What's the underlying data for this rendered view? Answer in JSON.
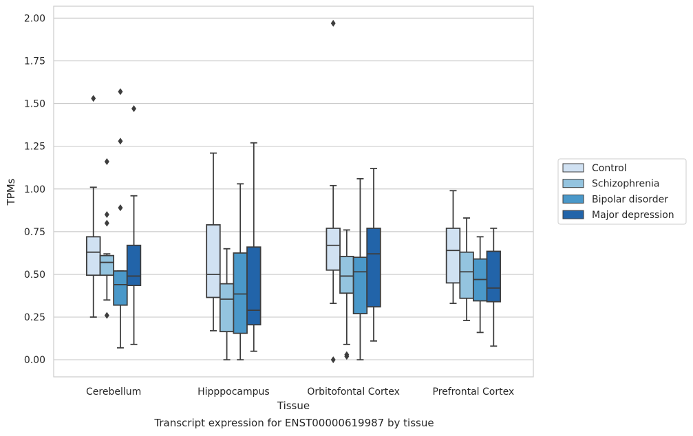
{
  "caption": "Transcript expression for ENST00000619987 by tissue",
  "chart_data": {
    "type": "box",
    "xlabel": "Tissue",
    "ylabel": "TPMs",
    "ylim": [
      -0.1,
      2.07
    ],
    "yticks": [
      "0.00",
      "0.25",
      "0.50",
      "0.75",
      "1.00",
      "1.25",
      "1.50",
      "1.75",
      "2.00"
    ],
    "grid": "horizontal",
    "legend_position": "right",
    "categories": [
      "Cerebellum",
      "Hipppocampus",
      "Orbitofontal Cortex",
      "Prefrontal Cortex"
    ],
    "series": [
      {
        "name": "Control",
        "color": "#d0e1f2",
        "boxes": [
          {
            "whislo": 0.25,
            "q1": 0.495,
            "med": 0.63,
            "q3": 0.72,
            "whishi": 1.01,
            "fliers": [
              1.53
            ]
          },
          {
            "whislo": 0.17,
            "q1": 0.365,
            "med": 0.5,
            "q3": 0.79,
            "whishi": 1.21,
            "fliers": []
          },
          {
            "whislo": 0.33,
            "q1": 0.525,
            "med": 0.67,
            "q3": 0.77,
            "whishi": 1.02,
            "fliers": [
              1.97,
              0.0
            ]
          },
          {
            "whislo": 0.33,
            "q1": 0.45,
            "med": 0.64,
            "q3": 0.77,
            "whishi": 0.99,
            "fliers": []
          }
        ]
      },
      {
        "name": "Schizophrenia",
        "color": "#94c4df",
        "boxes": [
          {
            "whislo": 0.35,
            "q1": 0.495,
            "med": 0.57,
            "q3": 0.61,
            "whishi": 0.62,
            "fliers": [
              1.16,
              0.85,
              0.8,
              0.26
            ]
          },
          {
            "whislo": 0.0,
            "q1": 0.165,
            "med": 0.355,
            "q3": 0.445,
            "whishi": 0.65,
            "fliers": []
          },
          {
            "whislo": 0.09,
            "q1": 0.39,
            "med": 0.49,
            "q3": 0.605,
            "whishi": 0.76,
            "fliers": [
              0.03,
              0.02
            ]
          },
          {
            "whislo": 0.23,
            "q1": 0.36,
            "med": 0.515,
            "q3": 0.63,
            "whishi": 0.83,
            "fliers": []
          }
        ]
      },
      {
        "name": "Bipolar disorder",
        "color": "#4a98c9",
        "boxes": [
          {
            "whislo": 0.07,
            "q1": 0.32,
            "med": 0.44,
            "q3": 0.52,
            "whishi": 0.52,
            "fliers": [
              1.57,
              1.28,
              0.89
            ]
          },
          {
            "whislo": 0.0,
            "q1": 0.155,
            "med": 0.385,
            "q3": 0.625,
            "whishi": 1.03,
            "fliers": []
          },
          {
            "whislo": 0.0,
            "q1": 0.27,
            "med": 0.515,
            "q3": 0.6,
            "whishi": 1.06,
            "fliers": []
          },
          {
            "whislo": 0.16,
            "q1": 0.345,
            "med": 0.47,
            "q3": 0.59,
            "whishi": 0.72,
            "fliers": []
          }
        ]
      },
      {
        "name": "Major depression",
        "color": "#2264a9",
        "boxes": [
          {
            "whislo": 0.09,
            "q1": 0.435,
            "med": 0.49,
            "q3": 0.67,
            "whishi": 0.96,
            "fliers": [
              1.47
            ]
          },
          {
            "whislo": 0.05,
            "q1": 0.205,
            "med": 0.29,
            "q3": 0.66,
            "whishi": 1.27,
            "fliers": []
          },
          {
            "whislo": 0.11,
            "q1": 0.31,
            "med": 0.62,
            "q3": 0.77,
            "whishi": 1.12,
            "fliers": []
          },
          {
            "whislo": 0.08,
            "q1": 0.34,
            "med": 0.42,
            "q3": 0.635,
            "whishi": 0.77,
            "fliers": []
          }
        ]
      }
    ]
  }
}
